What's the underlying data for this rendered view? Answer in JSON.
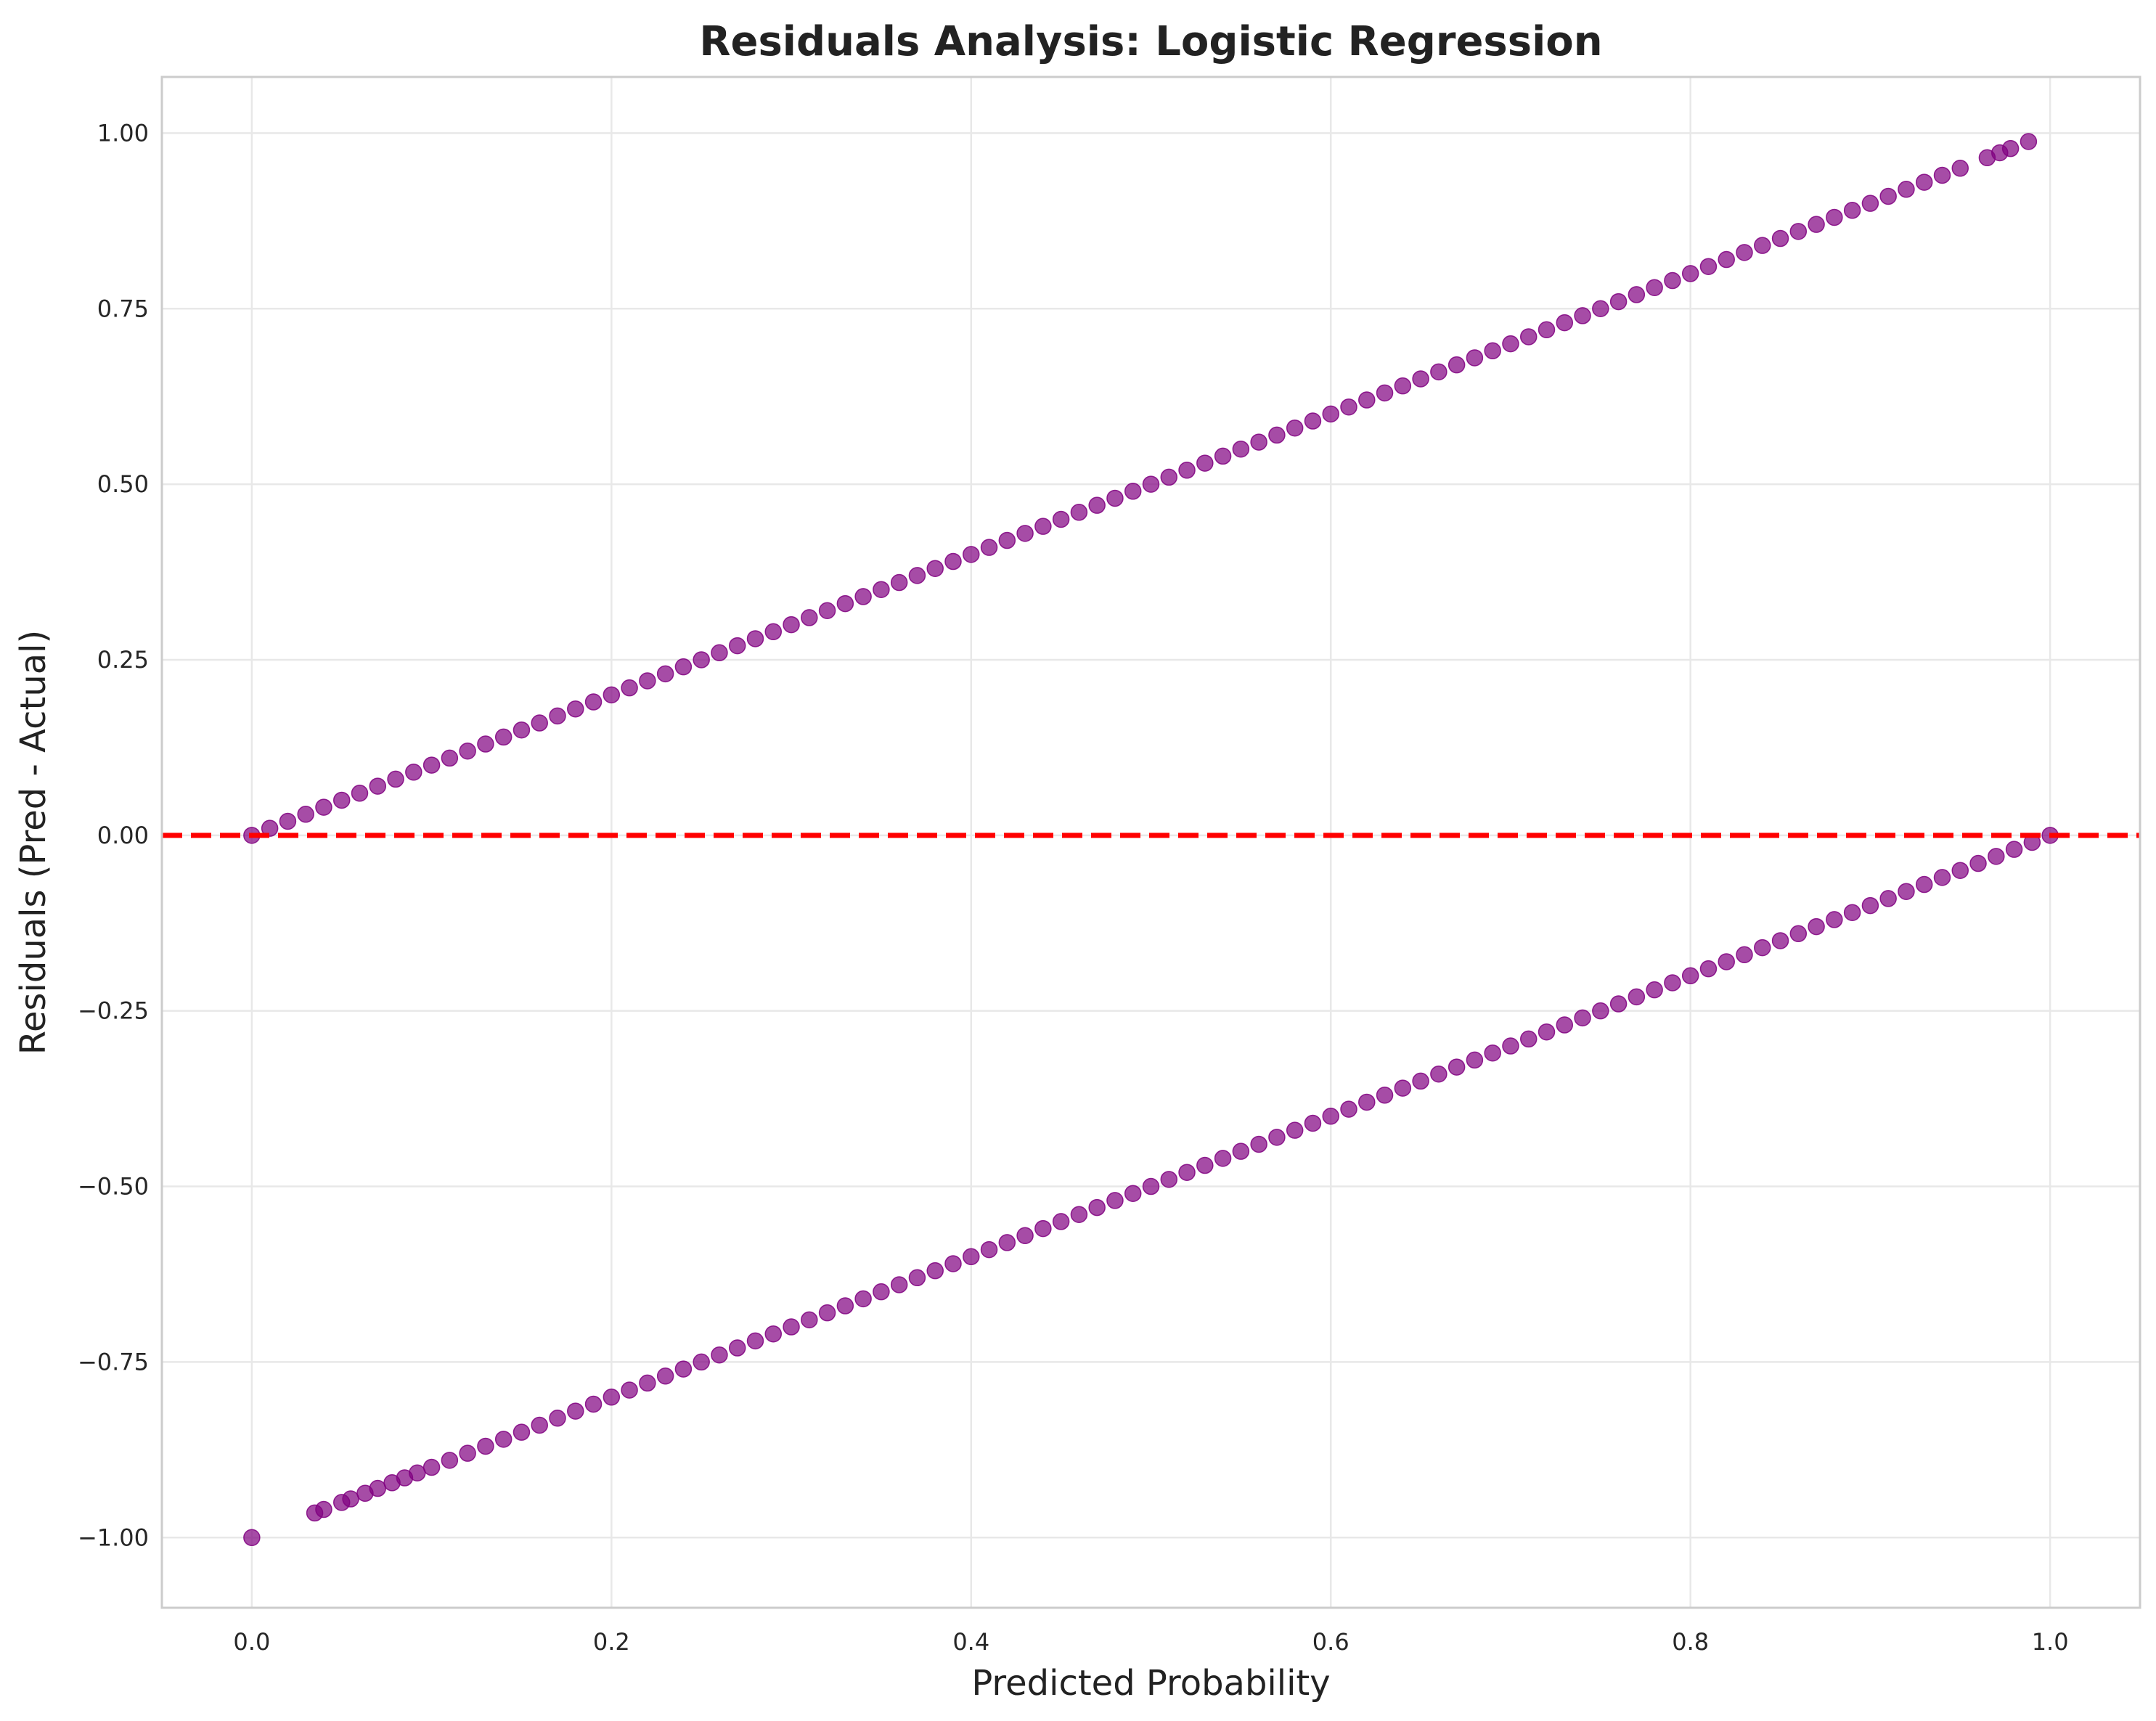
{
  "chart_data": {
    "type": "scatter",
    "title": "Residuals Analysis: Logistic Regression",
    "xlabel": "Predicted Probability",
    "ylabel": "Residuals (Pred - Actual)",
    "xlim": [
      -0.05,
      1.05
    ],
    "ylim": [
      -1.1,
      1.08
    ],
    "xticks": [
      0.0,
      0.2,
      0.4,
      0.6,
      0.8,
      1.0
    ],
    "xtick_labels": [
      "0.0",
      "0.2",
      "0.4",
      "0.6",
      "0.8",
      "1.0"
    ],
    "yticks": [
      1.0,
      0.75,
      0.5,
      0.25,
      0.0,
      -0.25,
      -0.5,
      -0.75,
      -1.0
    ],
    "ytick_labels": [
      "1.00",
      "0.75",
      "0.50",
      "0.25",
      "0.00",
      "−0.25",
      "−0.50",
      "−0.75",
      "−1.00"
    ],
    "grid": true,
    "marker_color": "#800080",
    "marker_alpha": 0.7,
    "reference_line": {
      "y": 0.0,
      "color": "#ff0000",
      "style": "dashed"
    },
    "series": [
      {
        "points": [
          [
            0.0,
            0.0
          ],
          [
            0.01,
            0.01
          ],
          [
            0.02,
            0.02
          ],
          [
            0.03,
            0.03
          ],
          [
            0.04,
            0.04
          ],
          [
            0.05,
            0.05
          ],
          [
            0.06,
            0.06
          ],
          [
            0.07,
            0.07
          ],
          [
            0.08,
            0.08
          ],
          [
            0.09,
            0.09
          ],
          [
            0.1,
            0.1
          ],
          [
            0.11,
            0.11
          ],
          [
            0.12,
            0.12
          ],
          [
            0.13,
            0.13
          ],
          [
            0.14,
            0.14
          ],
          [
            0.15,
            0.15
          ],
          [
            0.16,
            0.16
          ],
          [
            0.17,
            0.17
          ],
          [
            0.18,
            0.18
          ],
          [
            0.19,
            0.19
          ],
          [
            0.2,
            0.2
          ],
          [
            0.21,
            0.21
          ],
          [
            0.22,
            0.22
          ],
          [
            0.23,
            0.23
          ],
          [
            0.24,
            0.24
          ],
          [
            0.25,
            0.25
          ],
          [
            0.26,
            0.26
          ],
          [
            0.27,
            0.27
          ],
          [
            0.28,
            0.28
          ],
          [
            0.29,
            0.29
          ],
          [
            0.3,
            0.3
          ],
          [
            0.31,
            0.31
          ],
          [
            0.32,
            0.32
          ],
          [
            0.33,
            0.33
          ],
          [
            0.34,
            0.34
          ],
          [
            0.35,
            0.35
          ],
          [
            0.36,
            0.36
          ],
          [
            0.37,
            0.37
          ],
          [
            0.38,
            0.38
          ],
          [
            0.39,
            0.39
          ],
          [
            0.4,
            0.4
          ],
          [
            0.41,
            0.41
          ],
          [
            0.42,
            0.42
          ],
          [
            0.43,
            0.43
          ],
          [
            0.44,
            0.44
          ],
          [
            0.45,
            0.45
          ],
          [
            0.46,
            0.46
          ],
          [
            0.47,
            0.47
          ],
          [
            0.48,
            0.48
          ],
          [
            0.49,
            0.49
          ],
          [
            0.5,
            0.5
          ],
          [
            0.51,
            0.51
          ],
          [
            0.52,
            0.52
          ],
          [
            0.53,
            0.53
          ],
          [
            0.54,
            0.54
          ],
          [
            0.55,
            0.55
          ],
          [
            0.56,
            0.56
          ],
          [
            0.57,
            0.57
          ],
          [
            0.58,
            0.58
          ],
          [
            0.59,
            0.59
          ],
          [
            0.6,
            0.6
          ],
          [
            0.61,
            0.61
          ],
          [
            0.62,
            0.62
          ],
          [
            0.63,
            0.63
          ],
          [
            0.64,
            0.64
          ],
          [
            0.65,
            0.65
          ],
          [
            0.66,
            0.66
          ],
          [
            0.67,
            0.67
          ],
          [
            0.68,
            0.68
          ],
          [
            0.69,
            0.69
          ],
          [
            0.7,
            0.7
          ],
          [
            0.71,
            0.71
          ],
          [
            0.72,
            0.72
          ],
          [
            0.73,
            0.73
          ],
          [
            0.74,
            0.74
          ],
          [
            0.75,
            0.75
          ],
          [
            0.76,
            0.76
          ],
          [
            0.77,
            0.77
          ],
          [
            0.78,
            0.78
          ],
          [
            0.79,
            0.79
          ],
          [
            0.8,
            0.8
          ],
          [
            0.81,
            0.81
          ],
          [
            0.82,
            0.82
          ],
          [
            0.83,
            0.83
          ],
          [
            0.84,
            0.84
          ],
          [
            0.85,
            0.85
          ],
          [
            0.86,
            0.86
          ],
          [
            0.87,
            0.87
          ],
          [
            0.88,
            0.88
          ],
          [
            0.89,
            0.89
          ],
          [
            0.9,
            0.9
          ],
          [
            0.91,
            0.91
          ],
          [
            0.92,
            0.92
          ],
          [
            0.93,
            0.93
          ],
          [
            0.94,
            0.94
          ],
          [
            0.95,
            0.95
          ],
          [
            0.965,
            0.965
          ],
          [
            0.972,
            0.972
          ],
          [
            0.978,
            0.978
          ],
          [
            0.988,
            0.988
          ],
          [
            0.0,
            -1.0
          ],
          [
            0.035,
            -0.965
          ],
          [
            0.04,
            -0.96
          ],
          [
            0.05,
            -0.95
          ],
          [
            0.055,
            -0.945
          ],
          [
            0.063,
            -0.937
          ],
          [
            0.07,
            -0.93
          ],
          [
            0.078,
            -0.922
          ],
          [
            0.085,
            -0.915
          ],
          [
            0.092,
            -0.908
          ],
          [
            0.1,
            -0.9
          ],
          [
            0.11,
            -0.89
          ],
          [
            0.12,
            -0.88
          ],
          [
            0.13,
            -0.87
          ],
          [
            0.14,
            -0.86
          ],
          [
            0.15,
            -0.85
          ],
          [
            0.16,
            -0.84
          ],
          [
            0.17,
            -0.83
          ],
          [
            0.18,
            -0.82
          ],
          [
            0.19,
            -0.81
          ],
          [
            0.2,
            -0.8
          ],
          [
            0.21,
            -0.79
          ],
          [
            0.22,
            -0.78
          ],
          [
            0.23,
            -0.77
          ],
          [
            0.24,
            -0.76
          ],
          [
            0.25,
            -0.75
          ],
          [
            0.26,
            -0.74
          ],
          [
            0.27,
            -0.73
          ],
          [
            0.28,
            -0.72
          ],
          [
            0.29,
            -0.71
          ],
          [
            0.3,
            -0.7
          ],
          [
            0.31,
            -0.69
          ],
          [
            0.32,
            -0.68
          ],
          [
            0.33,
            -0.67
          ],
          [
            0.34,
            -0.66
          ],
          [
            0.35,
            -0.65
          ],
          [
            0.36,
            -0.64
          ],
          [
            0.37,
            -0.63
          ],
          [
            0.38,
            -0.62
          ],
          [
            0.39,
            -0.61
          ],
          [
            0.4,
            -0.6
          ],
          [
            0.41,
            -0.59
          ],
          [
            0.42,
            -0.58
          ],
          [
            0.43,
            -0.57
          ],
          [
            0.44,
            -0.56
          ],
          [
            0.45,
            -0.55
          ],
          [
            0.46,
            -0.54
          ],
          [
            0.47,
            -0.53
          ],
          [
            0.48,
            -0.52
          ],
          [
            0.49,
            -0.51
          ],
          [
            0.5,
            -0.5
          ],
          [
            0.51,
            -0.49
          ],
          [
            0.52,
            -0.48
          ],
          [
            0.53,
            -0.47
          ],
          [
            0.54,
            -0.46
          ],
          [
            0.55,
            -0.45
          ],
          [
            0.56,
            -0.44
          ],
          [
            0.57,
            -0.43
          ],
          [
            0.58,
            -0.42
          ],
          [
            0.59,
            -0.41
          ],
          [
            0.6,
            -0.4
          ],
          [
            0.61,
            -0.39
          ],
          [
            0.62,
            -0.38
          ],
          [
            0.63,
            -0.37
          ],
          [
            0.64,
            -0.36
          ],
          [
            0.65,
            -0.35
          ],
          [
            0.66,
            -0.34
          ],
          [
            0.67,
            -0.33
          ],
          [
            0.68,
            -0.32
          ],
          [
            0.69,
            -0.31
          ],
          [
            0.7,
            -0.3
          ],
          [
            0.71,
            -0.29
          ],
          [
            0.72,
            -0.28
          ],
          [
            0.73,
            -0.27
          ],
          [
            0.74,
            -0.26
          ],
          [
            0.75,
            -0.25
          ],
          [
            0.76,
            -0.24
          ],
          [
            0.77,
            -0.23
          ],
          [
            0.78,
            -0.22
          ],
          [
            0.79,
            -0.21
          ],
          [
            0.8,
            -0.2
          ],
          [
            0.81,
            -0.19
          ],
          [
            0.82,
            -0.18
          ],
          [
            0.83,
            -0.17
          ],
          [
            0.84,
            -0.16
          ],
          [
            0.85,
            -0.15
          ],
          [
            0.86,
            -0.14
          ],
          [
            0.87,
            -0.13
          ],
          [
            0.88,
            -0.12
          ],
          [
            0.89,
            -0.11
          ],
          [
            0.9,
            -0.1
          ],
          [
            0.91,
            -0.09
          ],
          [
            0.92,
            -0.08
          ],
          [
            0.93,
            -0.07
          ],
          [
            0.94,
            -0.06
          ],
          [
            0.95,
            -0.05
          ],
          [
            0.96,
            -0.04
          ],
          [
            0.97,
            -0.03
          ],
          [
            0.98,
            -0.02
          ],
          [
            0.99,
            -0.01
          ],
          [
            1.0,
            0.0
          ]
        ]
      }
    ]
  }
}
